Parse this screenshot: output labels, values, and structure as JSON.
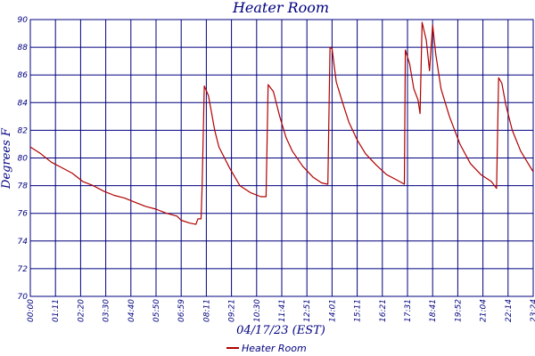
{
  "chart_data": {
    "type": "line",
    "title": "Heater Room",
    "xlabel": "04/17/23 (EST)",
    "ylabel": "Degrees F",
    "ylim": [
      70,
      90
    ],
    "yticks": [
      70,
      72,
      74,
      76,
      78,
      80,
      82,
      84,
      86,
      88,
      90
    ],
    "xticks": [
      "00:00",
      "01:11",
      "02:20",
      "03:30",
      "04:40",
      "05:50",
      "06:59",
      "08:11",
      "09:21",
      "10:30",
      "11:41",
      "12:51",
      "14:01",
      "15:11",
      "16:21",
      "17:31",
      "18:41",
      "19:52",
      "21:04",
      "22:14",
      "23:24"
    ],
    "grid": true,
    "legend_position": "bottom",
    "series": [
      {
        "name": "Heater Room",
        "color": "#b00000",
        "points": [
          [
            0.0,
            80.8
          ],
          [
            0.5,
            80.3
          ],
          [
            1.0,
            79.7
          ],
          [
            1.5,
            79.3
          ],
          [
            2.0,
            78.9
          ],
          [
            2.5,
            78.3
          ],
          [
            3.0,
            78.0
          ],
          [
            3.5,
            77.6
          ],
          [
            4.0,
            77.3
          ],
          [
            4.5,
            77.1
          ],
          [
            5.0,
            76.8
          ],
          [
            5.5,
            76.5
          ],
          [
            6.0,
            76.3
          ],
          [
            6.5,
            76.0
          ],
          [
            7.0,
            75.8
          ],
          [
            7.2,
            75.5
          ],
          [
            7.6,
            75.3
          ],
          [
            7.9,
            75.2
          ],
          [
            8.0,
            75.6
          ],
          [
            8.15,
            75.6
          ],
          [
            8.2,
            78.0
          ],
          [
            8.3,
            85.2
          ],
          [
            8.5,
            84.5
          ],
          [
            8.8,
            82.0
          ],
          [
            9.0,
            80.8
          ],
          [
            9.5,
            79.3
          ],
          [
            10.0,
            78.0
          ],
          [
            10.5,
            77.5
          ],
          [
            11.0,
            77.2
          ],
          [
            11.25,
            77.2
          ],
          [
            11.35,
            85.3
          ],
          [
            11.6,
            84.8
          ],
          [
            11.9,
            83.0
          ],
          [
            12.2,
            81.5
          ],
          [
            12.5,
            80.5
          ],
          [
            13.0,
            79.4
          ],
          [
            13.5,
            78.6
          ],
          [
            13.9,
            78.2
          ],
          [
            14.2,
            78.1
          ],
          [
            14.3,
            88.0
          ],
          [
            14.4,
            87.9
          ],
          [
            14.6,
            85.5
          ],
          [
            14.9,
            84.0
          ],
          [
            15.2,
            82.6
          ],
          [
            15.6,
            81.3
          ],
          [
            16.0,
            80.3
          ],
          [
            16.5,
            79.5
          ],
          [
            17.0,
            78.8
          ],
          [
            17.5,
            78.4
          ],
          [
            17.85,
            78.1
          ],
          [
            17.9,
            87.8
          ],
          [
            18.1,
            86.8
          ],
          [
            18.3,
            85.0
          ],
          [
            18.5,
            84.2
          ],
          [
            18.6,
            83.2
          ],
          [
            18.7,
            89.8
          ],
          [
            18.9,
            88.5
          ],
          [
            19.05,
            86.3
          ],
          [
            19.2,
            89.6
          ],
          [
            19.35,
            87.5
          ],
          [
            19.6,
            85.0
          ],
          [
            20.0,
            83.0
          ],
          [
            20.5,
            81.0
          ],
          [
            21.0,
            79.6
          ],
          [
            21.5,
            78.8
          ],
          [
            22.0,
            78.3
          ],
          [
            22.25,
            77.8
          ],
          [
            22.35,
            85.8
          ],
          [
            22.5,
            85.4
          ],
          [
            22.7,
            83.8
          ],
          [
            23.0,
            82.0
          ],
          [
            23.4,
            80.5
          ],
          [
            23.8,
            79.5
          ],
          [
            24.0,
            79.0
          ]
        ]
      }
    ]
  }
}
